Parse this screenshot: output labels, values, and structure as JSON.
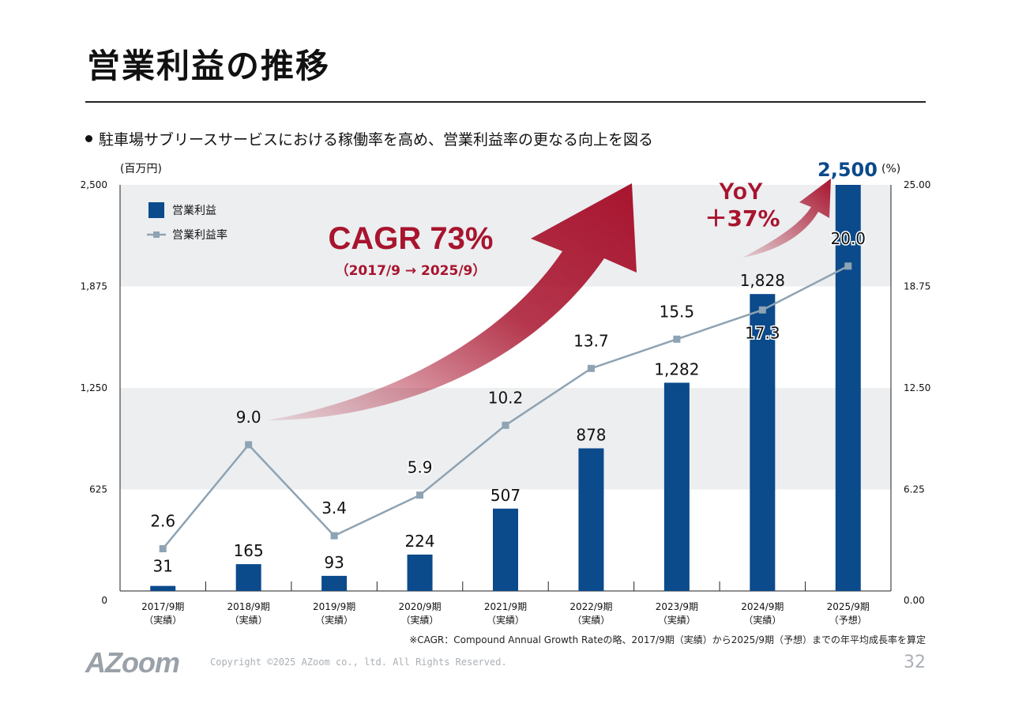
{
  "page": {
    "title": "営業利益の推移",
    "bullet": "駐車場サブリースサービスにおける稼働率を高め、営業利益率の更なる向上を図る",
    "footnote": "※CAGR：Compound Annual Growth Rateの略、2017/9期（実績）から2025/9期（予想）までの年平均成長率を算定",
    "logo": "AZoom",
    "copyright": "Copyright ©2025 AZoom co., ltd. All Rights Reserved.",
    "page_number": "32"
  },
  "chart_data": {
    "type": "bar",
    "left_axis_unit": "(百万円)",
    "right_axis_unit": "(%)",
    "categories": [
      [
        "2017/9期",
        "（実績）"
      ],
      [
        "2018/9期",
        "（実績）"
      ],
      [
        "2019/9期",
        "（実績）"
      ],
      [
        "2020/9期",
        "（実績）"
      ],
      [
        "2021/9期",
        "（実績）"
      ],
      [
        "2022/9期",
        "（実績）"
      ],
      [
        "2023/9期",
        "（実績）"
      ],
      [
        "2024/9期",
        "（実績）"
      ],
      [
        "2025/9期",
        "（予想）"
      ]
    ],
    "left_ticks": [
      "0",
      "625",
      "1,250",
      "1,875",
      "2,500"
    ],
    "right_ticks": [
      "0.00",
      "6.25",
      "12.50",
      "18.75",
      "25.00"
    ],
    "ylim_left": [
      0,
      2500
    ],
    "ylim_right": [
      0,
      25
    ],
    "series": [
      {
        "name": "営業利益",
        "type": "bar",
        "axis": "left",
        "color": "#0b4a8b",
        "values": [
          31,
          165,
          93,
          224,
          507,
          878,
          1282,
          1828,
          2500
        ],
        "labels": [
          "31",
          "165",
          "93",
          "224",
          "507",
          "878",
          "1,282",
          "1,828",
          "2,500"
        ]
      },
      {
        "name": "営業利益率",
        "type": "line",
        "axis": "right",
        "color": "#8ea3b3",
        "values": [
          2.6,
          9.0,
          3.4,
          5.9,
          10.2,
          13.7,
          15.5,
          17.3,
          20.0
        ],
        "labels": [
          "2.6",
          "9.0",
          "3.4",
          "5.9",
          "10.2",
          "13.7",
          "15.5",
          "17.3",
          "20.0"
        ]
      }
    ],
    "annotations": {
      "cagr": "CAGR 73%",
      "cagr_sub": "（2017/9 → 2025/9）",
      "yoy": "YoY",
      "yoy_value": "＋37%"
    },
    "colors": {
      "band": "#eceef0",
      "arrow": "#a8142e",
      "last_bar_label": "#0b4a8b"
    },
    "legend_position": "top-left",
    "grid": "alternating bands"
  }
}
